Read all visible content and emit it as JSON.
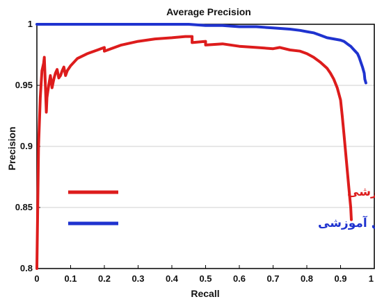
{
  "chart_data": {
    "type": "line",
    "title": "Average Precision",
    "xlabel": "Recall",
    "ylabel": "Precision",
    "xlim": [
      0,
      1
    ],
    "ylim": [
      0.8,
      1
    ],
    "x_ticks": [
      "0",
      "0.1",
      "0.2",
      "0.3",
      "0.4",
      "0.5",
      "0.6",
      "0.7",
      "0.8",
      "0.9",
      "1"
    ],
    "y_ticks": [
      "0.8",
      "0.85",
      "0.9",
      "0.95",
      "1"
    ],
    "grid": "horizontal",
    "legend_placement": "center",
    "series": [
      {
        "name": "روش پیشنهادی بدون استفاده از انتقال آموزشی",
        "color": "#dd1c1c",
        "x": [
          0.0,
          0.005,
          0.01,
          0.015,
          0.02,
          0.022,
          0.025,
          0.028,
          0.03,
          0.035,
          0.04,
          0.045,
          0.05,
          0.055,
          0.06,
          0.065,
          0.07,
          0.075,
          0.08,
          0.085,
          0.09,
          0.1,
          0.12,
          0.15,
          0.18,
          0.2,
          0.2,
          0.25,
          0.3,
          0.35,
          0.4,
          0.44,
          0.46,
          0.46,
          0.5,
          0.5,
          0.55,
          0.6,
          0.65,
          0.7,
          0.72,
          0.75,
          0.78,
          0.8,
          0.82,
          0.84,
          0.86,
          0.87,
          0.88,
          0.89,
          0.9,
          0.905,
          0.91,
          0.915,
          0.92,
          0.925,
          0.93,
          0.932
        ],
        "y": [
          0.8,
          0.9,
          0.94,
          0.962,
          0.968,
          0.973,
          0.952,
          0.928,
          0.94,
          0.95,
          0.958,
          0.948,
          0.955,
          0.96,
          0.963,
          0.956,
          0.958,
          0.962,
          0.965,
          0.958,
          0.962,
          0.966,
          0.972,
          0.976,
          0.979,
          0.981,
          0.978,
          0.983,
          0.986,
          0.988,
          0.989,
          0.99,
          0.99,
          0.985,
          0.986,
          0.983,
          0.984,
          0.982,
          0.981,
          0.98,
          0.981,
          0.979,
          0.978,
          0.976,
          0.973,
          0.969,
          0.964,
          0.96,
          0.955,
          0.948,
          0.938,
          0.925,
          0.91,
          0.895,
          0.88,
          0.865,
          0.85,
          0.84
        ]
      },
      {
        "name": "روش پیشنهادی با استفاده از انتقال آموزشی",
        "color": "#1f33cf",
        "x": [
          0.0,
          0.1,
          0.2,
          0.3,
          0.4,
          0.45,
          0.5,
          0.55,
          0.6,
          0.65,
          0.7,
          0.75,
          0.78,
          0.8,
          0.82,
          0.84,
          0.86,
          0.88,
          0.9,
          0.91,
          0.92,
          0.93,
          0.94,
          0.95,
          0.955,
          0.96,
          0.965,
          0.97,
          0.972,
          0.975
        ],
        "y": [
          1.0,
          1.0,
          1.0,
          1.0,
          1.0,
          1.0,
          0.999,
          0.999,
          0.998,
          0.998,
          0.997,
          0.996,
          0.995,
          0.994,
          0.993,
          0.991,
          0.989,
          0.988,
          0.987,
          0.986,
          0.984,
          0.982,
          0.979,
          0.976,
          0.973,
          0.969,
          0.965,
          0.96,
          0.955,
          0.952
        ]
      }
    ]
  }
}
